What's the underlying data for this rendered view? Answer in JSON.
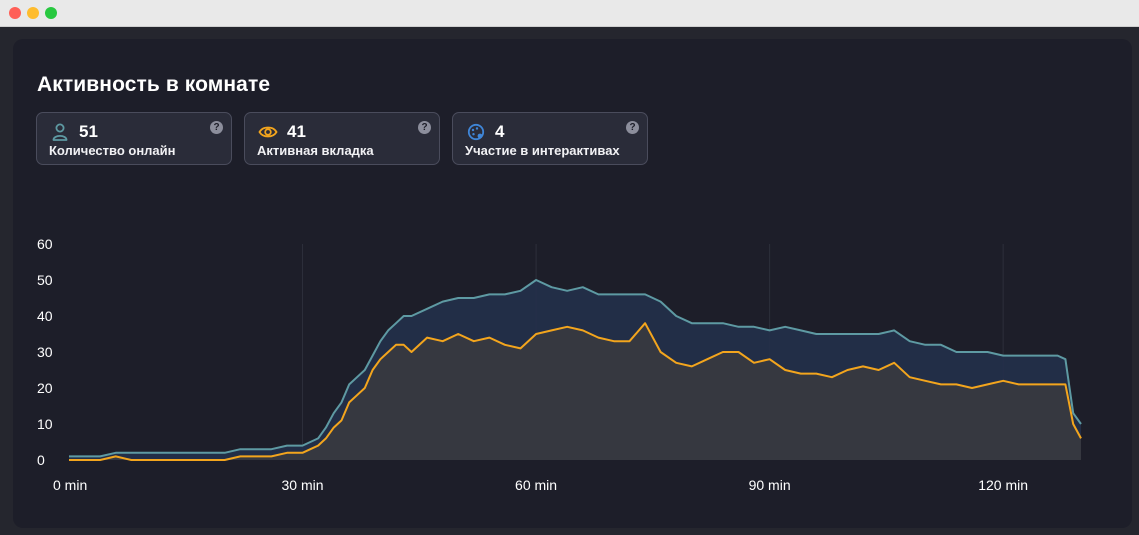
{
  "page": {
    "title": "Активность в комнате"
  },
  "colors": {
    "online": "#5e9aa3",
    "active_tab": "#f3a51d",
    "interactive": "#3f86d8",
    "panel": "#1d1e29",
    "card_border": "#4a4c5c"
  },
  "cards": [
    {
      "icon": "user-icon",
      "value": "51",
      "label": "Количество онлайн",
      "help": "?"
    },
    {
      "icon": "eye-icon",
      "value": "41",
      "label": "Активная вкладка",
      "help": "?"
    },
    {
      "icon": "palette-icon",
      "value": "4",
      "label": "Участие в интерактивах",
      "help": "?"
    }
  ],
  "chart_data": {
    "type": "area",
    "title": "",
    "xlabel": "",
    "ylabel": "",
    "x_unit": "min",
    "xlim": [
      0,
      130
    ],
    "ylim": [
      0,
      60
    ],
    "y_ticks": [
      0,
      10,
      20,
      30,
      40,
      50,
      60
    ],
    "x_ticks": [
      {
        "value": 0,
        "label": "0 min"
      },
      {
        "value": 30,
        "label": "30 min"
      },
      {
        "value": 60,
        "label": "60 min"
      },
      {
        "value": 90,
        "label": "90 min"
      },
      {
        "value": 120,
        "label": "120 min"
      }
    ],
    "grid": true,
    "legend": "none",
    "x": [
      0,
      2,
      4,
      6,
      8,
      10,
      12,
      14,
      16,
      18,
      20,
      22,
      24,
      26,
      28,
      30,
      31,
      32,
      33,
      34,
      35,
      36,
      37,
      38,
      39,
      40,
      41,
      42,
      43,
      44,
      46,
      48,
      50,
      52,
      54,
      56,
      58,
      60,
      62,
      64,
      66,
      68,
      70,
      72,
      74,
      76,
      78,
      80,
      82,
      84,
      86,
      88,
      90,
      92,
      94,
      96,
      98,
      100,
      102,
      104,
      106,
      108,
      110,
      112,
      114,
      116,
      118,
      120,
      122,
      124,
      126,
      127,
      128,
      129,
      130
    ],
    "series": [
      {
        "name": "",
        "color": "#5e9aa3",
        "values": [
          1,
          1,
          1,
          2,
          2,
          2,
          2,
          2,
          2,
          2,
          2,
          3,
          3,
          3,
          4,
          4,
          5,
          6,
          9,
          13,
          16,
          21,
          23,
          25,
          29,
          33,
          36,
          38,
          40,
          40,
          42,
          44,
          45,
          45,
          46,
          46,
          47,
          50,
          48,
          47,
          48,
          46,
          46,
          46,
          46,
          44,
          40,
          38,
          38,
          38,
          37,
          37,
          36,
          37,
          36,
          35,
          35,
          35,
          35,
          35,
          36,
          33,
          32,
          32,
          30,
          30,
          30,
          29,
          29,
          29,
          29,
          29,
          28,
          13,
          10
        ]
      },
      {
        "name": "",
        "color": "#f3a51d",
        "values": [
          0,
          0,
          0,
          1,
          0,
          0,
          0,
          0,
          0,
          0,
          0,
          1,
          1,
          1,
          2,
          2,
          3,
          4,
          6,
          9,
          11,
          16,
          18,
          20,
          25,
          28,
          30,
          32,
          32,
          30,
          34,
          33,
          35,
          33,
          34,
          32,
          31,
          35,
          36,
          37,
          36,
          34,
          33,
          33,
          38,
          30,
          27,
          26,
          28,
          30,
          30,
          27,
          28,
          25,
          24,
          24,
          23,
          25,
          26,
          25,
          27,
          23,
          22,
          21,
          21,
          20,
          21,
          22,
          21,
          21,
          21,
          21,
          21,
          10,
          6
        ]
      }
    ]
  }
}
